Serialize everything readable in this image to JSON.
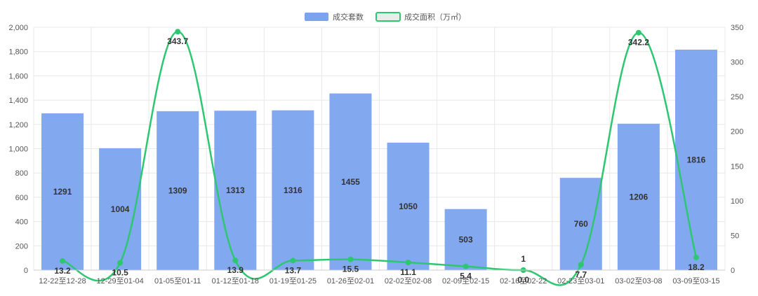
{
  "chart_data": {
    "type": "bar",
    "categories": [
      "12-22至12-28",
      "12-29至01-04",
      "01-05至01-11",
      "01-12至01-18",
      "01-19至01-25",
      "01-26至02-01",
      "02-02至02-08",
      "02-09至02-15",
      "02-16至02-22",
      "02-23至03-01",
      "03-02至03-08",
      "03-09至03-15"
    ],
    "series": [
      {
        "name": "成交套数",
        "type": "bar",
        "axis": "left",
        "color": "#7ba3ee",
        "values": [
          1291,
          1004,
          1309,
          1313,
          1316,
          1455,
          1050,
          503,
          1,
          760,
          1206,
          1816
        ]
      },
      {
        "name": "成交面积（万㎡）",
        "type": "line",
        "axis": "right",
        "color": "#2ec771",
        "values": [
          13.2,
          10.5,
          343.7,
          13.9,
          13.7,
          15.5,
          11.1,
          5.4,
          0.0,
          7.7,
          342.2,
          18.2
        ]
      }
    ],
    "y_left": {
      "min": 0,
      "max": 2000,
      "ticks": [
        "0",
        "200",
        "400",
        "600",
        "800",
        "1,000",
        "1,200",
        "1,400",
        "1,600",
        "1,800",
        "2,000"
      ]
    },
    "y_right": {
      "min": 0,
      "max": 350,
      "ticks": [
        "0",
        "50",
        "100",
        "150",
        "200",
        "250",
        "300",
        "350"
      ]
    },
    "legend_position": "top-center",
    "grid": true
  }
}
